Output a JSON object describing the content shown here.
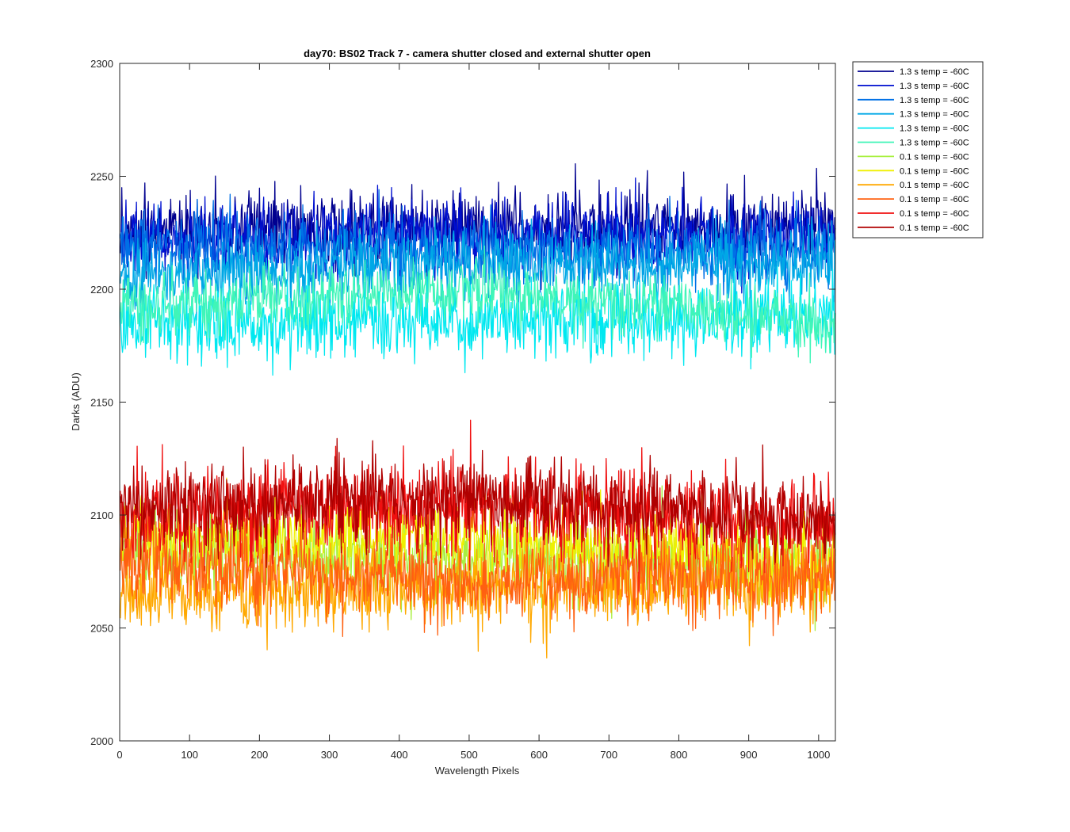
{
  "chart_data": {
    "type": "line",
    "title": "day70: BS02  Track 7 - camera shutter closed and external shutter open",
    "xlabel": "Wavelength Pixels",
    "ylabel": "Darks (ADU)",
    "xlim": [
      0,
      1024
    ],
    "ylim": [
      2000,
      2300
    ],
    "xticks": [
      0,
      100,
      200,
      300,
      400,
      500,
      600,
      700,
      800,
      900,
      1000
    ],
    "yticks": [
      2000,
      2050,
      2100,
      2150,
      2200,
      2250,
      2300
    ],
    "grid": false,
    "legend_position": "outside-top-right",
    "noise_seed": 70,
    "series": [
      {
        "name": "1.3 s temp = -60C",
        "color": "#00008F",
        "mean_start": 2225,
        "mean_end": 2228,
        "mean_mid": 2227,
        "std": 8,
        "min": 2192,
        "max": 2259
      },
      {
        "name": "1.3 s temp = -60C",
        "color": "#0010D0",
        "mean_start": 2223,
        "mean_end": 2224,
        "mean_mid": 2224,
        "std": 8,
        "min": 2185,
        "max": 2258
      },
      {
        "name": "1.3 s temp = -60C",
        "color": "#0070E6",
        "mean_start": 2220,
        "mean_end": 2215,
        "mean_mid": 2218,
        "std": 8,
        "min": 2180,
        "max": 2254
      },
      {
        "name": "1.3 s temp = -60C",
        "color": "#00A8E6",
        "mean_start": 2205,
        "mean_end": 2210,
        "mean_mid": 2212,
        "std": 8,
        "min": 2170,
        "max": 2245
      },
      {
        "name": "1.3 s temp = -60C",
        "color": "#00E8F0",
        "mean_start": 2185,
        "mean_end": 2188,
        "mean_mid": 2186,
        "std": 8,
        "min": 2142,
        "max": 2225
      },
      {
        "name": "1.3 s temp = -60C",
        "color": "#40F5B8",
        "mean_start": 2192,
        "mean_end": 2185,
        "mean_mid": 2200,
        "std": 7,
        "min": 2160,
        "max": 2225
      },
      {
        "name": "0.1 s temp = -60C",
        "color": "#A8F040",
        "mean_start": 2085,
        "mean_end": 2080,
        "mean_mid": 2082,
        "std": 9,
        "min": 2029,
        "max": 2135
      },
      {
        "name": "0.1 s temp = -60C",
        "color": "#F0F000",
        "mean_start": 2090,
        "mean_end": 2078,
        "mean_mid": 2090,
        "std": 9,
        "min": 2030,
        "max": 2145
      },
      {
        "name": "0.1 s temp = -60C",
        "color": "#FFA800",
        "mean_start": 2065,
        "mean_end": 2070,
        "mean_mid": 2068,
        "std": 9,
        "min": 2024,
        "max": 2120
      },
      {
        "name": "0.1 s temp = -60C",
        "color": "#FF6010",
        "mean_start": 2080,
        "mean_end": 2075,
        "mean_mid": 2070,
        "std": 9,
        "min": 2034,
        "max": 2125
      },
      {
        "name": "0.1 s temp = -60C",
        "color": "#F01010",
        "mean_start": 2100,
        "mean_end": 2095,
        "mean_mid": 2103,
        "std": 10,
        "min": 2045,
        "max": 2160
      },
      {
        "name": "0.1 s temp = -60C",
        "color": "#B00000",
        "mean_start": 2103,
        "mean_end": 2098,
        "mean_mid": 2108,
        "std": 9,
        "min": 2053,
        "max": 2152
      }
    ]
  }
}
